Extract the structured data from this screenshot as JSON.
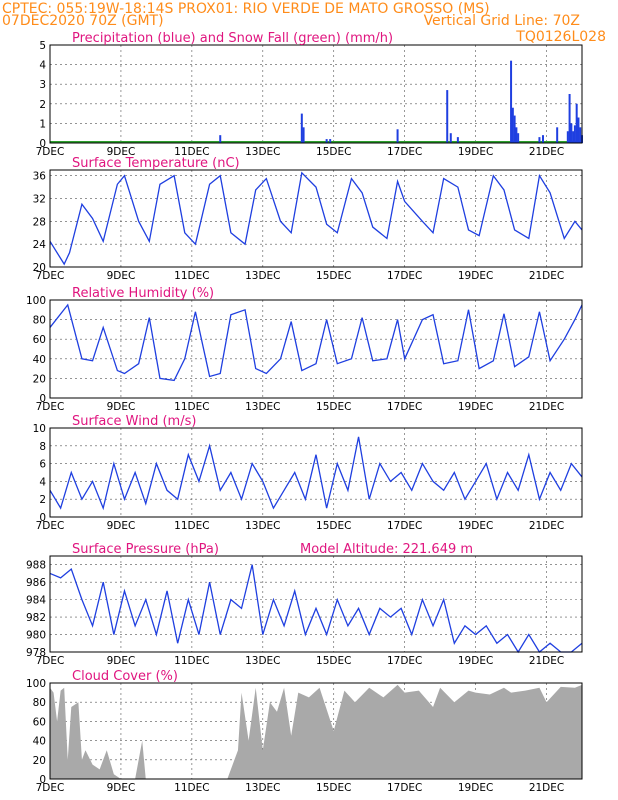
{
  "header": {
    "left_line1": "CPTEC:   055:19W-18:14S   PROX01: RIO VERDE DE MATO GROSSO (MS)",
    "left_line2": "07DEC2020 70Z (GMT)",
    "right_line2": "Vertical Grid Line: 70Z",
    "right_line3": "TQ0126L028"
  },
  "colors": {
    "header": "#ff8c1a",
    "panel_title": "#e0157f",
    "line": "#1f3fe0",
    "snow": "#2ca02c",
    "cloud": "#a9a9a9"
  },
  "x_axis": {
    "start_day": 7,
    "end_day": 22,
    "tick_labels": [
      "7DEC",
      "9DEC",
      "11DEC",
      "13DEC",
      "15DEC",
      "17DEC",
      "19DEC",
      "21DEC"
    ],
    "tick_days": [
      7,
      9,
      11,
      13,
      15,
      17,
      19,
      21
    ]
  },
  "chart_data": [
    {
      "type": "bar",
      "title": "Precipitation (blue) and Snow Fall (green) (mm/h)",
      "ylim": [
        0,
        5
      ],
      "yticks": [
        0,
        1,
        2,
        3,
        4,
        5
      ],
      "series": [
        {
          "name": "Precipitation",
          "color": "#1f3fe0",
          "points": [
            [
              11.8,
              0.4
            ],
            [
              14.1,
              1.5
            ],
            [
              14.15,
              0.8
            ],
            [
              14.8,
              0.2
            ],
            [
              14.9,
              0.2
            ],
            [
              16.8,
              0.7
            ],
            [
              18.2,
              2.7
            ],
            [
              18.3,
              0.5
            ],
            [
              18.5,
              0.3
            ],
            [
              20.0,
              4.2
            ],
            [
              20.05,
              1.8
            ],
            [
              20.1,
              1.4
            ],
            [
              20.15,
              0.8
            ],
            [
              20.2,
              0.5
            ],
            [
              20.8,
              0.3
            ],
            [
              20.9,
              0.4
            ],
            [
              21.3,
              0.8
            ],
            [
              21.6,
              0.6
            ],
            [
              21.65,
              2.5
            ],
            [
              21.7,
              1.0
            ],
            [
              21.75,
              0.6
            ],
            [
              21.8,
              0.9
            ],
            [
              21.85,
              2.0
            ],
            [
              21.9,
              1.3
            ],
            [
              21.95,
              0.8
            ],
            [
              22.0,
              0.4
            ]
          ]
        },
        {
          "name": "Snow Fall",
          "color": "#2ca02c",
          "points": []
        }
      ]
    },
    {
      "type": "line",
      "title": "Surface Temperature (nC)",
      "ylim": [
        20,
        37
      ],
      "yticks": [
        20,
        24,
        28,
        32,
        36
      ],
      "x": [
        7.0,
        7.4,
        7.55,
        7.9,
        8.2,
        8.5,
        8.9,
        9.1,
        9.5,
        9.8,
        10.1,
        10.5,
        10.8,
        11.1,
        11.5,
        11.8,
        12.1,
        12.5,
        12.8,
        13.1,
        13.5,
        13.8,
        14.1,
        14.5,
        14.8,
        15.1,
        15.5,
        15.8,
        16.1,
        16.5,
        16.8,
        17.0,
        17.5,
        17.8,
        18.1,
        18.5,
        18.8,
        19.1,
        19.5,
        19.8,
        20.1,
        20.5,
        20.8,
        21.1,
        21.5,
        21.8,
        22.0
      ],
      "y": [
        24.5,
        20.5,
        22.5,
        31.0,
        28.5,
        24.5,
        34.5,
        36.0,
        28.0,
        24.5,
        34.5,
        36.0,
        26.0,
        24.0,
        34.5,
        36.0,
        26.0,
        24.0,
        33.5,
        35.5,
        28.0,
        26.0,
        36.5,
        34.0,
        27.5,
        26.0,
        35.5,
        33.0,
        27.0,
        25.0,
        35.0,
        31.5,
        28.0,
        26.0,
        35.5,
        34.0,
        26.5,
        25.5,
        36.0,
        33.5,
        26.5,
        25.0,
        36.0,
        33.0,
        25.0,
        28.0,
        26.5
      ]
    },
    {
      "type": "line",
      "title": "Relative Humidity (%)",
      "ylim": [
        0,
        100
      ],
      "yticks": [
        0,
        20,
        40,
        60,
        80,
        100
      ],
      "x": [
        7.0,
        7.5,
        7.9,
        8.2,
        8.5,
        8.9,
        9.1,
        9.5,
        9.8,
        10.1,
        10.5,
        10.8,
        11.1,
        11.5,
        11.8,
        12.1,
        12.5,
        12.8,
        13.1,
        13.5,
        13.8,
        14.1,
        14.5,
        14.8,
        15.1,
        15.5,
        15.8,
        16.1,
        16.5,
        16.8,
        17.0,
        17.5,
        17.8,
        18.1,
        18.5,
        18.8,
        19.1,
        19.5,
        19.8,
        20.1,
        20.5,
        20.8,
        21.1,
        21.5,
        21.8,
        22.0
      ],
      "y": [
        72,
        95,
        40,
        38,
        72,
        28,
        25,
        35,
        82,
        20,
        18,
        40,
        88,
        22,
        25,
        85,
        90,
        30,
        25,
        40,
        78,
        28,
        35,
        80,
        35,
        40,
        82,
        38,
        40,
        80,
        40,
        80,
        85,
        35,
        38,
        90,
        30,
        38,
        86,
        32,
        42,
        88,
        38,
        60,
        80,
        95
      ]
    },
    {
      "type": "line",
      "title": "Surface Wind (m/s)",
      "ylim": [
        0,
        10
      ],
      "yticks": [
        0,
        2,
        4,
        6,
        8,
        10
      ],
      "x": [
        7.0,
        7.3,
        7.6,
        7.9,
        8.2,
        8.5,
        8.8,
        9.1,
        9.4,
        9.7,
        10.0,
        10.3,
        10.6,
        10.9,
        11.2,
        11.5,
        11.8,
        12.1,
        12.4,
        12.7,
        13.0,
        13.3,
        13.6,
        13.9,
        14.2,
        14.5,
        14.8,
        15.1,
        15.4,
        15.7,
        16.0,
        16.3,
        16.6,
        16.9,
        17.2,
        17.5,
        17.8,
        18.1,
        18.4,
        18.7,
        19.0,
        19.3,
        19.6,
        19.9,
        20.2,
        20.5,
        20.8,
        21.1,
        21.4,
        21.7,
        22.0
      ],
      "y": [
        3,
        1,
        5,
        2,
        4,
        1,
        6,
        2,
        5,
        1.5,
        6,
        3,
        2,
        7,
        4,
        8,
        3,
        5,
        2,
        6,
        4,
        1,
        3,
        5,
        2,
        7,
        1,
        6,
        3,
        9,
        2,
        6,
        4,
        5,
        3,
        6,
        4,
        3,
        5,
        2,
        4,
        6,
        2,
        5,
        3,
        7,
        2,
        5,
        3,
        6,
        4.5
      ]
    },
    {
      "type": "line",
      "title": "Surface Pressure (hPa)",
      "annotation": "Model Altitude: 221.649 m",
      "ylim": [
        978,
        989
      ],
      "yticks": [
        978,
        980,
        982,
        984,
        986,
        988
      ],
      "x": [
        7.0,
        7.3,
        7.6,
        7.9,
        8.2,
        8.5,
        8.8,
        9.1,
        9.4,
        9.7,
        10.0,
        10.3,
        10.6,
        10.9,
        11.2,
        11.5,
        11.8,
        12.1,
        12.4,
        12.7,
        13.0,
        13.3,
        13.6,
        13.9,
        14.2,
        14.5,
        14.8,
        15.1,
        15.4,
        15.7,
        16.0,
        16.3,
        16.6,
        16.9,
        17.2,
        17.5,
        17.8,
        18.1,
        18.4,
        18.7,
        19.0,
        19.3,
        19.6,
        19.9,
        20.2,
        20.5,
        20.8,
        21.1,
        21.4,
        21.7,
        22.0
      ],
      "y": [
        987,
        986.5,
        987.5,
        984,
        981,
        986,
        980,
        985,
        981,
        984,
        980,
        985,
        979,
        984,
        980,
        986,
        980,
        984,
        983,
        988,
        980,
        984,
        981,
        985,
        980,
        983,
        980,
        984,
        981,
        983,
        980,
        983,
        982,
        983,
        980,
        984,
        981,
        984,
        979,
        981,
        980,
        981,
        979,
        980,
        978,
        980,
        978,
        979,
        977,
        978,
        979
      ]
    },
    {
      "type": "area",
      "title": "Cloud Cover (%)",
      "ylim": [
        0,
        100
      ],
      "yticks": [
        0,
        20,
        40,
        60,
        80,
        100
      ],
      "x": [
        7.0,
        7.1,
        7.2,
        7.3,
        7.4,
        7.5,
        7.6,
        7.8,
        7.9,
        8.0,
        8.2,
        8.4,
        8.6,
        8.8,
        9.0,
        9.4,
        9.6,
        9.7,
        10.0,
        10.5,
        11.0,
        11.5,
        12.0,
        12.3,
        12.4,
        12.6,
        12.8,
        13.0,
        13.2,
        13.4,
        13.6,
        13.8,
        14.0,
        14.3,
        14.6,
        15.0,
        15.3,
        15.6,
        16.0,
        16.4,
        16.8,
        17.0,
        17.4,
        17.8,
        18.0,
        18.4,
        18.8,
        19.0,
        19.4,
        19.8,
        20.0,
        20.4,
        20.8,
        21.0,
        21.4,
        21.8,
        22.0
      ],
      "y": [
        95,
        90,
        60,
        92,
        95,
        20,
        75,
        80,
        20,
        30,
        15,
        10,
        30,
        5,
        0,
        0,
        40,
        0,
        0,
        0,
        0,
        0,
        0,
        30,
        90,
        40,
        95,
        30,
        80,
        70,
        95,
        45,
        90,
        85,
        95,
        50,
        92,
        80,
        95,
        85,
        98,
        90,
        92,
        75,
        95,
        80,
        92,
        90,
        88,
        95,
        90,
        92,
        95,
        80,
        96,
        95,
        98
      ]
    }
  ]
}
